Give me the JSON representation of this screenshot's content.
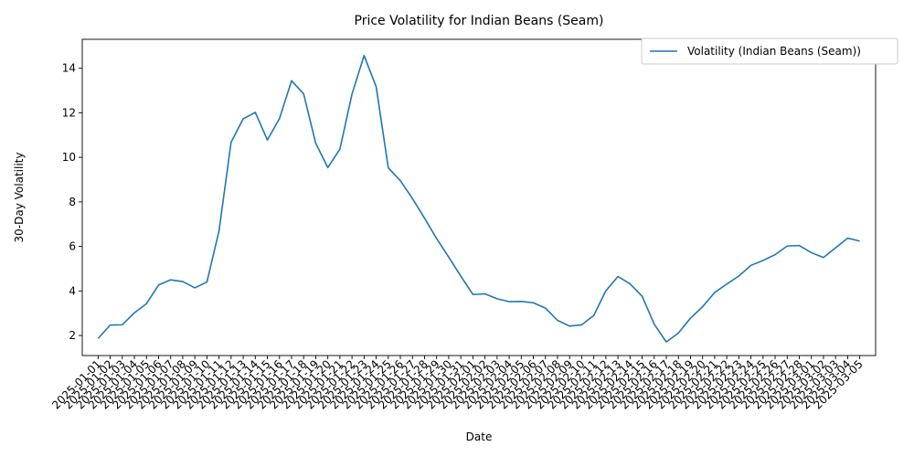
{
  "chart_data": {
    "type": "line",
    "title": "Price Volatility for Indian Beans (Seam)",
    "xlabel": "Date",
    "ylabel": "30-Day Volatility",
    "ylim": [
      1.1,
      15.3
    ],
    "yticks": [
      2,
      4,
      6,
      8,
      10,
      12,
      14
    ],
    "grid": false,
    "legend_position": "top-right",
    "x": [
      "2025-01-01",
      "2025-01-02",
      "2025-01-03",
      "2025-01-04",
      "2025-01-05",
      "2025-01-06",
      "2025-01-07",
      "2025-01-08",
      "2025-01-09",
      "2025-01-10",
      "2025-01-11",
      "2025-01-12",
      "2025-01-13",
      "2025-01-14",
      "2025-01-15",
      "2025-01-16",
      "2025-01-17",
      "2025-01-18",
      "2025-01-19",
      "2025-01-20",
      "2025-01-21",
      "2025-01-22",
      "2025-01-23",
      "2025-01-24",
      "2025-01-25",
      "2025-01-26",
      "2025-01-27",
      "2025-01-28",
      "2025-01-29",
      "2025-01-30",
      "2025-01-31",
      "2025-02-01",
      "2025-02-02",
      "2025-02-03",
      "2025-02-04",
      "2025-02-05",
      "2025-02-06",
      "2025-02-07",
      "2025-02-08",
      "2025-02-09",
      "2025-02-10",
      "2025-02-11",
      "2025-02-12",
      "2025-02-13",
      "2025-02-14",
      "2025-02-15",
      "2025-02-16",
      "2025-02-17",
      "2025-02-18",
      "2025-02-19",
      "2025-02-20",
      "2025-02-21",
      "2025-02-22",
      "2025-02-23",
      "2025-02-24",
      "2025-02-25",
      "2025-02-26",
      "2025-02-27",
      "2025-02-28",
      "2025-03-01",
      "2025-03-02",
      "2025-03-03",
      "2025-03-04",
      "2025-03-05"
    ],
    "series": [
      {
        "name": "Volatility (Indian Beans (Seam))",
        "color": "#1f77b4",
        "values": [
          1.87,
          2.47,
          2.48,
          3.02,
          3.43,
          4.27,
          4.5,
          4.42,
          4.14,
          4.4,
          6.7,
          10.68,
          11.73,
          12.02,
          10.78,
          11.74,
          13.44,
          12.85,
          10.63,
          9.54,
          10.37,
          12.84,
          14.57,
          13.17,
          9.53,
          8.95,
          8.15,
          7.27,
          6.35,
          5.52,
          4.67,
          3.84,
          3.87,
          3.65,
          3.52,
          3.53,
          3.47,
          3.23,
          2.68,
          2.42,
          2.48,
          2.9,
          4.01,
          4.65,
          4.32,
          3.76,
          2.51,
          1.71,
          2.11,
          2.78,
          3.29,
          3.93,
          4.31,
          4.67,
          5.15,
          5.37,
          5.63,
          6.02,
          6.04,
          5.72,
          5.5,
          5.94,
          6.37,
          6.24
        ]
      }
    ]
  }
}
